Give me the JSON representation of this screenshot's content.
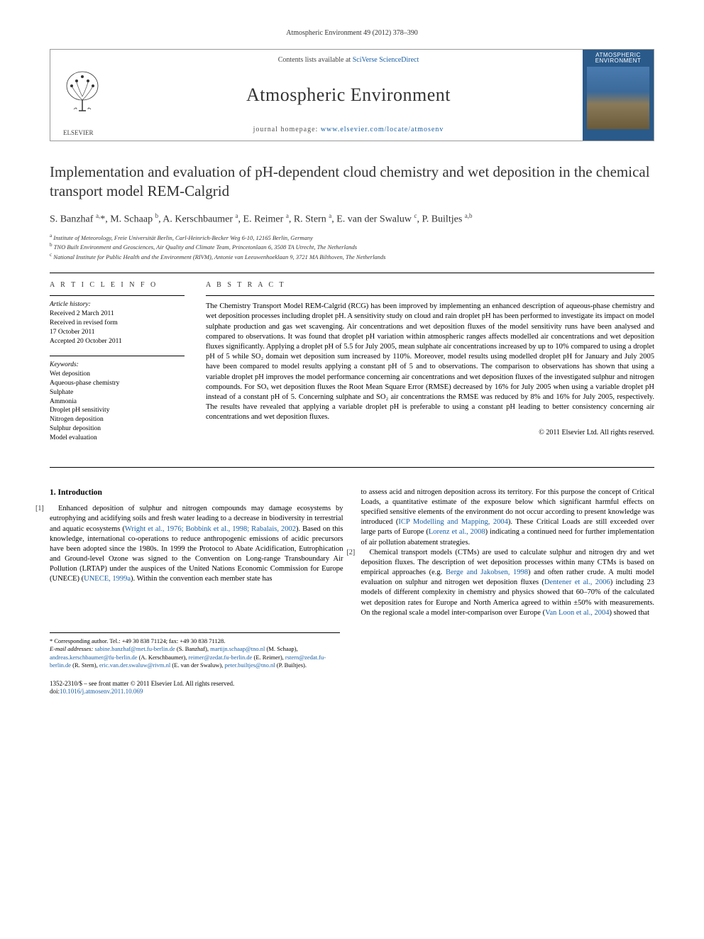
{
  "header": {
    "citation": "Atmospheric Environment 49 (2012) 378–390"
  },
  "banner": {
    "contents_prefix": "Contents lists available at ",
    "contents_link": "SciVerse ScienceDirect",
    "journal_name": "Atmospheric Environment",
    "homepage_prefix": "journal homepage: ",
    "homepage_url": "www.elsevier.com/locate/atmosenv",
    "publisher": "ELSEVIER",
    "cover_title": "ATMOSPHERIC ENVIRONMENT"
  },
  "title": "Implementation and evaluation of pH-dependent cloud chemistry and wet deposition in the chemical transport model REM-Calgrid",
  "authors_html": "S. Banzhaf <sup>a,</sup>*, M. Schaap <sup>b</sup>, A. Kerschbaumer <sup>a</sup>, E. Reimer <sup>a</sup>, R. Stern <sup>a</sup>, E. van der Swaluw <sup>c</sup>, P. Builtjes <sup>a,b</sup>",
  "affiliations": {
    "a": "Institute of Meteorology, Freie Universität Berlin, Carl-Heinrich-Becker Weg 6-10, 12165 Berlin, Germany",
    "b": "TNO Built Environment and Geosciences, Air Quality and Climate Team, Princetonlaan 6, 3508 TA Utrecht, The Netherlands",
    "c": "National Institute for Public Health and the Environment (RIVM), Antonie van Leeuwenhoeklaan 9, 3721 MA Bilthoven, The Netherlands"
  },
  "info": {
    "section_label": "A R T I C L E   I N F O",
    "history_label": "Article history:",
    "received": "Received 2 March 2011",
    "revised": "Received in revised form",
    "revised_date": "17 October 2011",
    "accepted": "Accepted 20 October 2011",
    "keywords_label": "Keywords:",
    "keywords": [
      "Wet deposition",
      "Aqueous-phase chemistry",
      "Sulphate",
      "Ammonia",
      "Droplet pH sensitivity",
      "Nitrogen deposition",
      "Sulphur deposition",
      "Model evaluation"
    ]
  },
  "abstract": {
    "label": "A B S T R A C T",
    "text": "The Chemistry Transport Model REM-Calgrid (RCG) has been improved by implementing an enhanced description of aqueous-phase chemistry and wet deposition processes including droplet pH. A sensitivity study on cloud and rain droplet pH has been performed to investigate its impact on model sulphate production and gas wet scavenging. Air concentrations and wet deposition fluxes of the model sensitivity runs have been analysed and compared to observations. It was found that droplet pH variation within atmospheric ranges affects modelled air concentrations and wet deposition fluxes significantly. Applying a droplet pH of 5.5 for July 2005, mean sulphate air concentrations increased by up to 10% compared to using a droplet pH of 5 while SO₂ domain wet deposition sum increased by 110%. Moreover, model results using modelled droplet pH for January and July 2005 have been compared to model results applying a constant pH of 5 and to observations. The comparison to observations has shown that using a variable droplet pH improves the model performance concerning air concentrations and wet deposition fluxes of the investigated sulphur and nitrogen compounds. For SOₓ wet deposition fluxes the Root Mean Square Error (RMSE) decreased by 16% for July 2005 when using a variable droplet pH instead of a constant pH of 5. Concerning sulphate and SO₂ air concentrations the RMSE was reduced by 8% and 16% for July 2005, respectively. The results have revealed that applying a variable droplet pH is preferable to using a constant pH leading to better consistency concerning air concentrations and wet deposition fluxes.",
    "copyright": "© 2011 Elsevier Ltd. All rights reserved."
  },
  "body": {
    "intro_heading": "1. Introduction",
    "para1": "Enhanced deposition of sulphur and nitrogen compounds may damage ecosystems by eutrophying and acidifying soils and fresh water leading to a decrease in biodiversity in terrestrial and aquatic ecosystems (Wright et al., 1976; Bobbink et al., 1998; Rabalais, 2002). Based on this knowledge, international co-operations to reduce anthropogenic emissions of acidic precursors have been adopted since the 1980s. In 1999 the Protocol to Abate Acidification, Eutrophication and Ground-level Ozone was signed to the Convention on Long-range Transboundary Air Pollution (LRTAP) under the auspices of the United Nations Economic Commission for Europe (UNECE) (UNECE, 1999a). Within the convention each member state has",
    "para1_cont": "to assess acid and nitrogen deposition across its territory. For this purpose the concept of Critical Loads, a quantitative estimate of the exposure below which significant harmful effects on specified sensitive elements of the environment do not occur according to present knowledge was introduced (ICP Modelling and Mapping, 2004). These Critical Loads are still exceeded over large parts of Europe (Lorenz et al., 2008) indicating a continued need for further implementation of air pollution abatement strategies.",
    "para2": "Chemical transport models (CTMs) are used to calculate sulphur and nitrogen dry and wet deposition fluxes. The description of wet deposition processes within many CTMs is based on empirical approaches (e.g. Berge and Jakobsen, 1998) and often rather crude. A multi model evaluation on sulphur and nitrogen wet deposition fluxes (Dentener et al., 2006) including 23 models of different complexity in chemistry and physics showed that 60–70% of the calculated wet deposition rates for Europe and North America agreed to within ±50% with measurements. On the regional scale a model inter-comparison over Europe (Van Loon et al., 2004) showed that",
    "cites": {
      "c1": "Wright et al., 1976; Bobbink et al., 1998; Rabalais, 2002",
      "c2": "UNECE, 1999a",
      "c3": "ICP Modelling and Mapping, 2004",
      "c4": "Lorenz et al., 2008",
      "c5": "Berge and Jakobsen, 1998",
      "c6": "Dentener et al., 2006",
      "c7": "Van Loon et al., 2004"
    }
  },
  "footnotes": {
    "corr": "* Corresponding author. Tel.: +49 30 838 71124; fax: +49 30 838 71128.",
    "email_label": "E-mail addresses:",
    "emails": "sabine.banzhaf@met.fu-berlin.de (S. Banzhaf), martijn.schaap@tno.nl (M. Schaap), andreas.kerschbaumer@fu-berlin.de (A. Kerschbaumer), reimer@zedat.fu-berlin.de (E. Reimer), rstern@zedat.fu-berlin.de (R. Stern), eric.van.der.swaluw@rivm.nl (E. van der Swaluw), peter.builtjes@tno.nl (P. Builtjes)."
  },
  "footer": {
    "line1": "1352-2310/$ – see front matter © 2011 Elsevier Ltd. All rights reserved.",
    "doi_label": "doi:",
    "doi": "10.1016/j.atmosenv.2011.10.069"
  },
  "colors": {
    "link": "#1a5fa3",
    "text": "#000000",
    "border": "#999999",
    "cover_bg": "#2a5a8a"
  }
}
